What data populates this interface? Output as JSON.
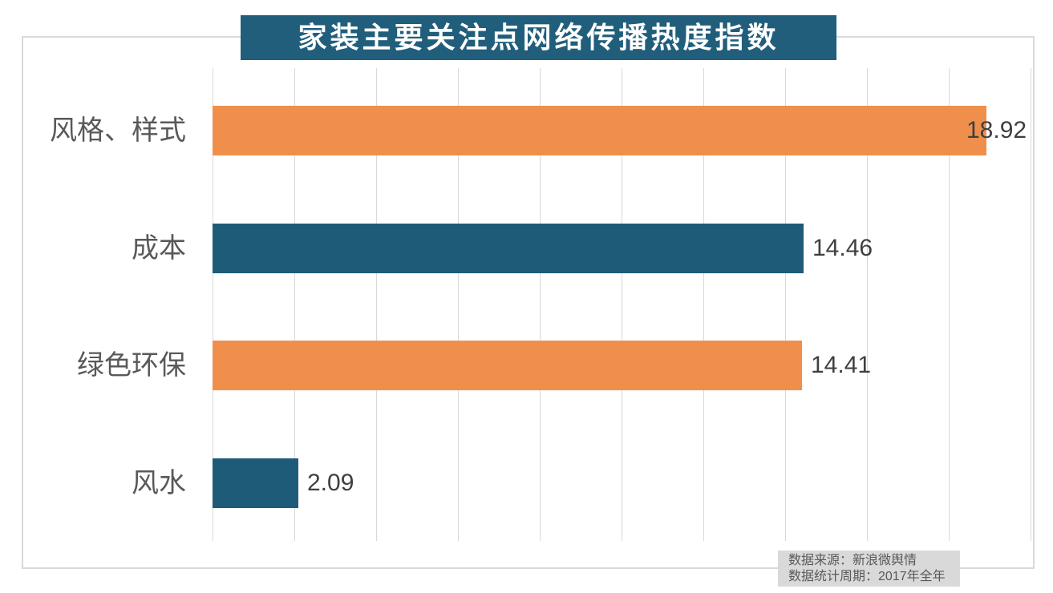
{
  "chart_data": {
    "type": "bar",
    "orientation": "horizontal",
    "title": "家装主要关注点网络传播热度指数",
    "categories": [
      "风格、样式",
      "成本",
      "绿色环保",
      "风水"
    ],
    "values": [
      18.92,
      14.46,
      14.41,
      2.09
    ],
    "value_labels": [
      "18.92",
      "14.46",
      "14.41",
      "2.09"
    ],
    "bar_colors": [
      "#EF8F4B",
      "#1E5B78",
      "#EF8F4B",
      "#1E5B78"
    ],
    "xlim": [
      0,
      20
    ],
    "gridline_interval": 2,
    "grid": true,
    "legend": "none",
    "xlabel": "",
    "ylabel": "",
    "source_lines": [
      "数据来源：新浪微舆情",
      "数据统计周期：2017年全年"
    ]
  },
  "colors": {
    "title_background": "#215E7B",
    "title_text": "#FFFFFF",
    "gridline": "#D9D9D9",
    "chart_border": "#D9D9D9",
    "category_text": "#595959",
    "value_text": "#3F3F3F",
    "source_background": "#D9D9D9",
    "source_text": "#595959"
  }
}
